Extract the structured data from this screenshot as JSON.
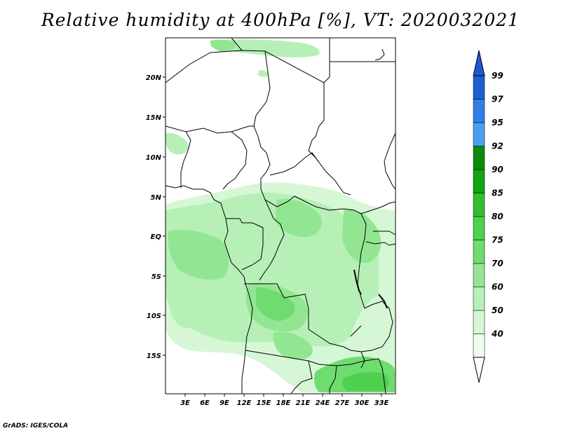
{
  "title": "Relative humidity at 400hPa [%], VT: 2020032021",
  "credit": "GrADS: IGES/COLA",
  "map": {
    "lon_range": [
      0,
      35
    ],
    "lat_range": [
      -20,
      24
    ],
    "y_ticks": [
      "20N",
      "15N",
      "10N",
      "5N",
      "EQ",
      "5S",
      "10S",
      "15S"
    ],
    "x_ticks": [
      "3E",
      "6E",
      "9E",
      "12E",
      "15E",
      "18E",
      "21E",
      "24E",
      "27E",
      "30E",
      "33E"
    ]
  },
  "colorbar": {
    "levels": [
      "99",
      "97",
      "95",
      "92",
      "90",
      "85",
      "80",
      "75",
      "70",
      "60",
      "50",
      "40"
    ],
    "colors": [
      "#1e5fd0",
      "#2f7fe6",
      "#4a9ff0",
      "#0a8a0a",
      "#16a316",
      "#2fbf2f",
      "#4fd04f",
      "#6edc6e",
      "#92e692",
      "#b6f0b6",
      "#d6f7d6",
      "#effcef"
    ],
    "top_color": "#1c5ad0",
    "bottom_color": "#ffffff"
  }
}
